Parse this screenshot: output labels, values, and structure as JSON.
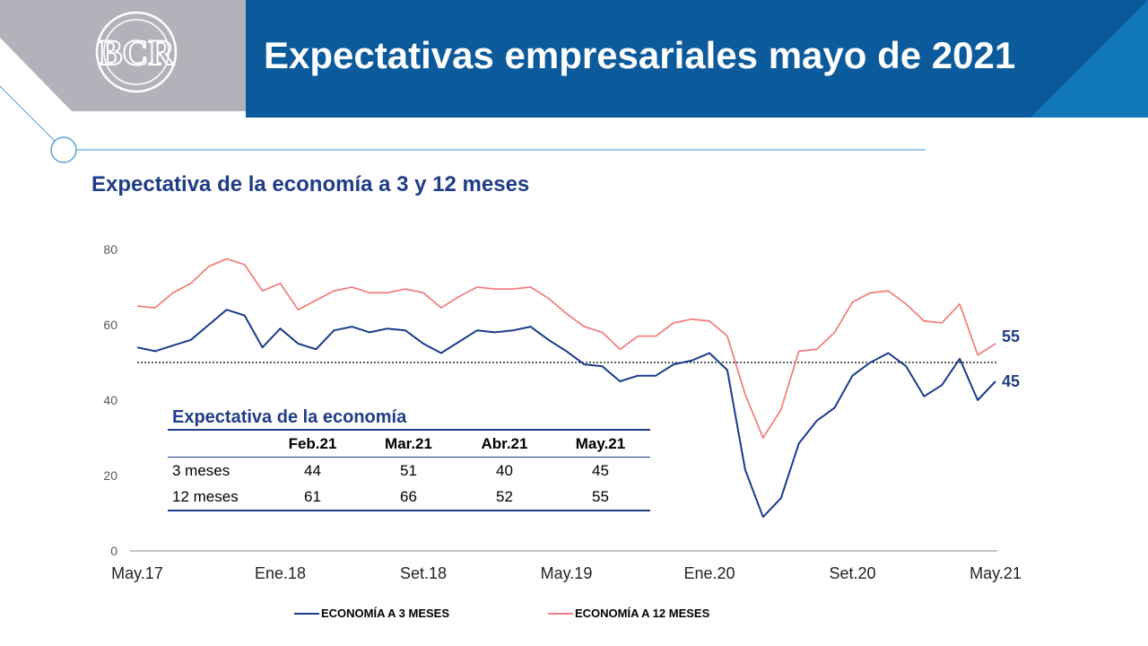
{
  "header": {
    "title": "Expectativas empresariales mayo de 2021"
  },
  "subtitle": "Expectativa de la economía a 3 y 12 meses",
  "colors": {
    "header_bg": "#0a5a9c",
    "series_3m": "#1a3a8c",
    "series_12m": "#f08080",
    "title_text": "#1f3c88"
  },
  "logo": {
    "icon": "bcrp-monogram-icon",
    "text": "BCR"
  },
  "chart_data": {
    "type": "line",
    "ylim": [
      0,
      80
    ],
    "yticks": [
      0,
      20,
      40,
      60,
      80
    ],
    "x_tick_labels": [
      {
        "label": "May.17",
        "index": 0
      },
      {
        "label": "Ene.18",
        "index": 8
      },
      {
        "label": "Set.18",
        "index": 16
      },
      {
        "label": "May.19",
        "index": 24
      },
      {
        "label": "Ene.20",
        "index": 32
      },
      {
        "label": "Set.20",
        "index": 40
      },
      {
        "label": "May.21",
        "index": 48
      }
    ],
    "reference_line": 50,
    "series": [
      {
        "name": "ECONOMÍA A 3 MESES",
        "color": "#1a3a8c",
        "values": [
          54,
          53,
          54.5,
          56,
          60,
          64,
          62.5,
          54,
          59,
          55,
          53.5,
          58.5,
          59.5,
          58,
          59,
          58.5,
          55,
          52.5,
          55.5,
          58.5,
          58,
          58.5,
          59.5,
          56,
          53,
          49.5,
          49,
          45,
          46.5,
          46.5,
          49.5,
          50.5,
          52.5,
          48,
          21.5,
          9,
          14,
          28.5,
          34.5,
          38,
          46.5,
          50,
          52.5,
          49,
          41,
          44,
          51,
          40,
          45
        ],
        "end_label": "45"
      },
      {
        "name": "ECONOMÍA A 12 MESES",
        "color": "#f08080",
        "values": [
          65,
          64.5,
          68.5,
          71,
          75.5,
          77.5,
          76,
          69,
          71,
          64,
          66.5,
          69,
          70,
          68.5,
          68.5,
          69.5,
          68.5,
          64.5,
          67.5,
          70,
          69.5,
          69.5,
          70,
          67,
          63,
          59.5,
          58,
          53.5,
          57,
          57,
          60.5,
          61.5,
          61,
          57,
          41.5,
          30,
          37.5,
          53,
          53.5,
          58,
          66,
          68.5,
          69,
          65.5,
          61,
          60.5,
          65.5,
          52,
          55
        ],
        "end_label": "55"
      }
    ],
    "table": {
      "title": "Expectativa de la economía",
      "columns": [
        "",
        "Feb.21",
        "Mar.21",
        "Abr.21",
        "May.21"
      ],
      "rows": [
        [
          "3 meses",
          "44",
          "51",
          "40",
          "45"
        ],
        [
          "12 meses",
          "61",
          "66",
          "52",
          "55"
        ]
      ]
    },
    "legend": [
      "ECONOMÍA A 3 MESES",
      "ECONOMÍA A 12 MESES"
    ]
  }
}
